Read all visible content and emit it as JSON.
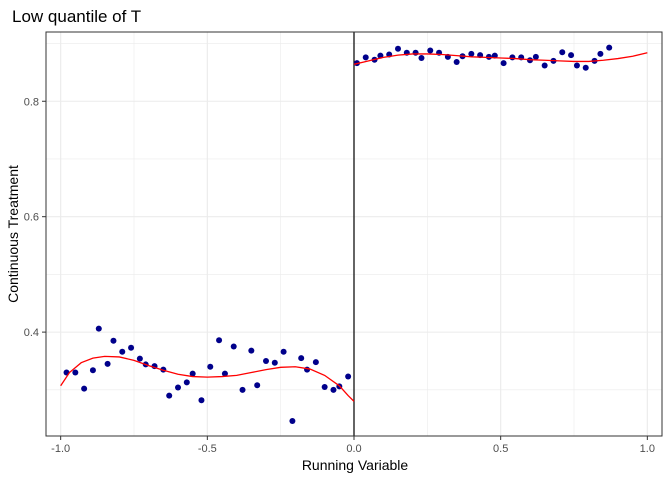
{
  "chart_data": {
    "type": "scatter",
    "title": "Low quantile of T",
    "xlabel": "Running Variable",
    "ylabel": "Continuous Treatment",
    "xlim": [
      -1.05,
      1.05
    ],
    "ylim": [
      0.22,
      0.92
    ],
    "x_ticks": [
      -1.0,
      -0.5,
      0.0,
      0.5,
      1.0
    ],
    "x_tick_labels": [
      "-1.0",
      "-0.5",
      "0.0",
      "0.5",
      "1.0"
    ],
    "y_ticks": [
      0.4,
      0.6,
      0.8
    ],
    "y_tick_labels": [
      "0.4",
      "0.6",
      "0.8"
    ],
    "cutoff": 0.0,
    "grid": true,
    "colors": {
      "points": "#00008B",
      "fit": "#FF0000",
      "cutoff": "#000000",
      "grid": "#EBEBEB",
      "border": "#333333"
    },
    "series": [
      {
        "name": "Binned means",
        "kind": "scatter",
        "points": [
          [
            -0.98,
            0.33
          ],
          [
            -0.95,
            0.33
          ],
          [
            -0.92,
            0.302
          ],
          [
            -0.89,
            0.334
          ],
          [
            -0.87,
            0.406
          ],
          [
            -0.84,
            0.345
          ],
          [
            -0.82,
            0.385
          ],
          [
            -0.79,
            0.366
          ],
          [
            -0.76,
            0.373
          ],
          [
            -0.73,
            0.354
          ],
          [
            -0.71,
            0.344
          ],
          [
            -0.68,
            0.341
          ],
          [
            -0.65,
            0.335
          ],
          [
            -0.63,
            0.29
          ],
          [
            -0.6,
            0.304
          ],
          [
            -0.57,
            0.313
          ],
          [
            -0.55,
            0.328
          ],
          [
            -0.52,
            0.282
          ],
          [
            -0.49,
            0.34
          ],
          [
            -0.46,
            0.386
          ],
          [
            -0.44,
            0.328
          ],
          [
            -0.41,
            0.375
          ],
          [
            -0.38,
            0.3
          ],
          [
            -0.35,
            0.368
          ],
          [
            -0.33,
            0.308
          ],
          [
            -0.3,
            0.35
          ],
          [
            -0.27,
            0.347
          ],
          [
            -0.24,
            0.366
          ],
          [
            -0.21,
            0.246
          ],
          [
            -0.18,
            0.355
          ],
          [
            -0.16,
            0.335
          ],
          [
            -0.13,
            0.348
          ],
          [
            -0.1,
            0.305
          ],
          [
            -0.07,
            0.3
          ],
          [
            -0.05,
            0.306
          ],
          [
            -0.02,
            0.323
          ],
          [
            0.01,
            0.866
          ],
          [
            0.04,
            0.876
          ],
          [
            0.07,
            0.872
          ],
          [
            0.09,
            0.879
          ],
          [
            0.12,
            0.881
          ],
          [
            0.15,
            0.891
          ],
          [
            0.18,
            0.884
          ],
          [
            0.21,
            0.884
          ],
          [
            0.23,
            0.875
          ],
          [
            0.26,
            0.888
          ],
          [
            0.29,
            0.884
          ],
          [
            0.32,
            0.877
          ],
          [
            0.35,
            0.868
          ],
          [
            0.37,
            0.878
          ],
          [
            0.4,
            0.882
          ],
          [
            0.43,
            0.88
          ],
          [
            0.46,
            0.877
          ],
          [
            0.48,
            0.879
          ],
          [
            0.51,
            0.866
          ],
          [
            0.54,
            0.876
          ],
          [
            0.57,
            0.876
          ],
          [
            0.6,
            0.871
          ],
          [
            0.62,
            0.877
          ],
          [
            0.65,
            0.862
          ],
          [
            0.68,
            0.87
          ],
          [
            0.71,
            0.885
          ],
          [
            0.74,
            0.88
          ],
          [
            0.76,
            0.862
          ],
          [
            0.79,
            0.858
          ],
          [
            0.82,
            0.87
          ],
          [
            0.84,
            0.882
          ],
          [
            0.87,
            0.893
          ]
        ]
      },
      {
        "name": "Polynomial fit (left)",
        "kind": "line",
        "points": [
          [
            -1.0,
            0.307
          ],
          [
            -0.97,
            0.33
          ],
          [
            -0.93,
            0.347
          ],
          [
            -0.89,
            0.355
          ],
          [
            -0.85,
            0.358
          ],
          [
            -0.8,
            0.357
          ],
          [
            -0.75,
            0.351
          ],
          [
            -0.7,
            0.342
          ],
          [
            -0.65,
            0.334
          ],
          [
            -0.6,
            0.327
          ],
          [
            -0.55,
            0.323
          ],
          [
            -0.5,
            0.322
          ],
          [
            -0.45,
            0.323
          ],
          [
            -0.4,
            0.325
          ],
          [
            -0.35,
            0.33
          ],
          [
            -0.3,
            0.335
          ],
          [
            -0.25,
            0.339
          ],
          [
            -0.2,
            0.34
          ],
          [
            -0.15,
            0.336
          ],
          [
            -0.1,
            0.325
          ],
          [
            -0.05,
            0.307
          ],
          [
            -0.02,
            0.29
          ],
          [
            0.0,
            0.28
          ]
        ]
      },
      {
        "name": "Polynomial fit (right)",
        "kind": "line",
        "points": [
          [
            0.0,
            0.864
          ],
          [
            0.05,
            0.87
          ],
          [
            0.1,
            0.876
          ],
          [
            0.15,
            0.88
          ],
          [
            0.2,
            0.882
          ],
          [
            0.25,
            0.882
          ],
          [
            0.3,
            0.881
          ],
          [
            0.35,
            0.879
          ],
          [
            0.4,
            0.877
          ],
          [
            0.45,
            0.876
          ],
          [
            0.5,
            0.875
          ],
          [
            0.55,
            0.874
          ],
          [
            0.6,
            0.872
          ],
          [
            0.65,
            0.871
          ],
          [
            0.7,
            0.87
          ],
          [
            0.75,
            0.869
          ],
          [
            0.8,
            0.869
          ],
          [
            0.85,
            0.871
          ],
          [
            0.9,
            0.874
          ],
          [
            0.95,
            0.878
          ],
          [
            1.0,
            0.884
          ]
        ]
      }
    ]
  }
}
